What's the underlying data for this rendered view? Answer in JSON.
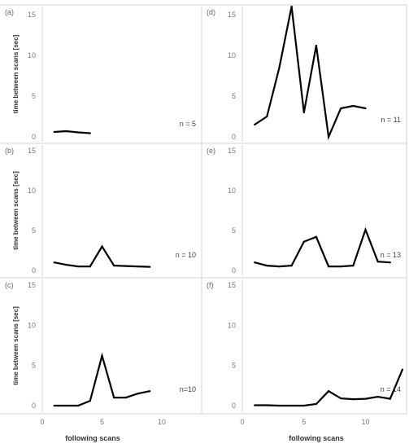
{
  "chart_data": [
    {
      "type": "line",
      "panel": "(a)",
      "ylabel": "time between scans [sec]",
      "annotation": "n = 5",
      "xlim": [
        0,
        13
      ],
      "ylim": [
        0,
        15
      ],
      "xticks": [
        "0",
        "5",
        "10"
      ],
      "yticks": [
        "0",
        "5",
        "10",
        "15"
      ],
      "x": [
        1,
        2,
        3,
        4
      ],
      "values": [
        0.6,
        0.7,
        0.55,
        0.45
      ]
    },
    {
      "type": "line",
      "panel": "(d)",
      "ylabel": "",
      "annotation": "n = 11",
      "xlim": [
        0,
        13
      ],
      "ylim": [
        0,
        15
      ],
      "xticks": [
        "0",
        "5",
        "10"
      ],
      "yticks": [
        "0",
        "5",
        "10",
        "15"
      ],
      "x": [
        1,
        2,
        3,
        4,
        5,
        6,
        7,
        8,
        9,
        10
      ],
      "values": [
        1.5,
        2.5,
        8.5,
        16,
        3.0,
        11.2,
        0,
        3.5,
        3.8,
        3.5
      ]
    },
    {
      "type": "line",
      "panel": "(b)",
      "ylabel": "time between scans [sec]",
      "annotation": "n = 10",
      "xlim": [
        0,
        13
      ],
      "ylim": [
        0,
        15
      ],
      "xticks": [
        "0",
        "5",
        "10"
      ],
      "yticks": [
        "0",
        "5",
        "10",
        "15"
      ],
      "x": [
        1,
        2,
        3,
        4,
        5,
        6,
        7,
        8,
        9
      ],
      "values": [
        1.0,
        0.7,
        0.5,
        0.5,
        3.0,
        0.6,
        0.55,
        0.5,
        0.45
      ]
    },
    {
      "type": "line",
      "panel": "(e)",
      "ylabel": "",
      "annotation": "n = 13",
      "xlim": [
        0,
        13
      ],
      "ylim": [
        0,
        15
      ],
      "xticks": [
        "0",
        "5",
        "10"
      ],
      "yticks": [
        "0",
        "5",
        "10",
        "15"
      ],
      "x": [
        1,
        2,
        3,
        4,
        5,
        6,
        7,
        8,
        9,
        10,
        11,
        12
      ],
      "values": [
        1.0,
        0.6,
        0.5,
        0.6,
        3.6,
        4.2,
        0.5,
        0.5,
        0.6,
        5.1,
        1.1,
        1.0
      ]
    },
    {
      "type": "line",
      "panel": "(c)",
      "ylabel": "time between scans [sec]",
      "annotation": "n=10",
      "xlim": [
        0,
        13
      ],
      "ylim": [
        0,
        15
      ],
      "xticks": [
        "0",
        "5",
        "10"
      ],
      "yticks": [
        "0",
        "5",
        "10",
        "15"
      ],
      "x": [
        1,
        2,
        3,
        4,
        5,
        6,
        7,
        8,
        9
      ],
      "values": [
        0,
        0,
        0,
        0.6,
        6.2,
        1.0,
        1.0,
        1.5,
        1.8
      ]
    },
    {
      "type": "line",
      "panel": "(f)",
      "ylabel": "",
      "annotation": "n = 14",
      "xlim": [
        0,
        13
      ],
      "ylim": [
        0,
        15
      ],
      "xticks": [
        "0",
        "5",
        "10"
      ],
      "yticks": [
        "0",
        "5",
        "10",
        "15"
      ],
      "x": [
        1,
        2,
        3,
        4,
        5,
        6,
        7,
        8,
        9,
        10,
        11,
        12,
        13
      ],
      "values": [
        0.05,
        0.05,
        0,
        0,
        0,
        0.2,
        1.8,
        0.9,
        0.8,
        0.85,
        1.1,
        0.85,
        4.5
      ]
    }
  ],
  "xlabel_left": "following scans",
  "xlabel_right": "following scans",
  "colors": {
    "line": "#000000",
    "grid": "#d3d3d3",
    "tick": "#7a7a7a"
  }
}
